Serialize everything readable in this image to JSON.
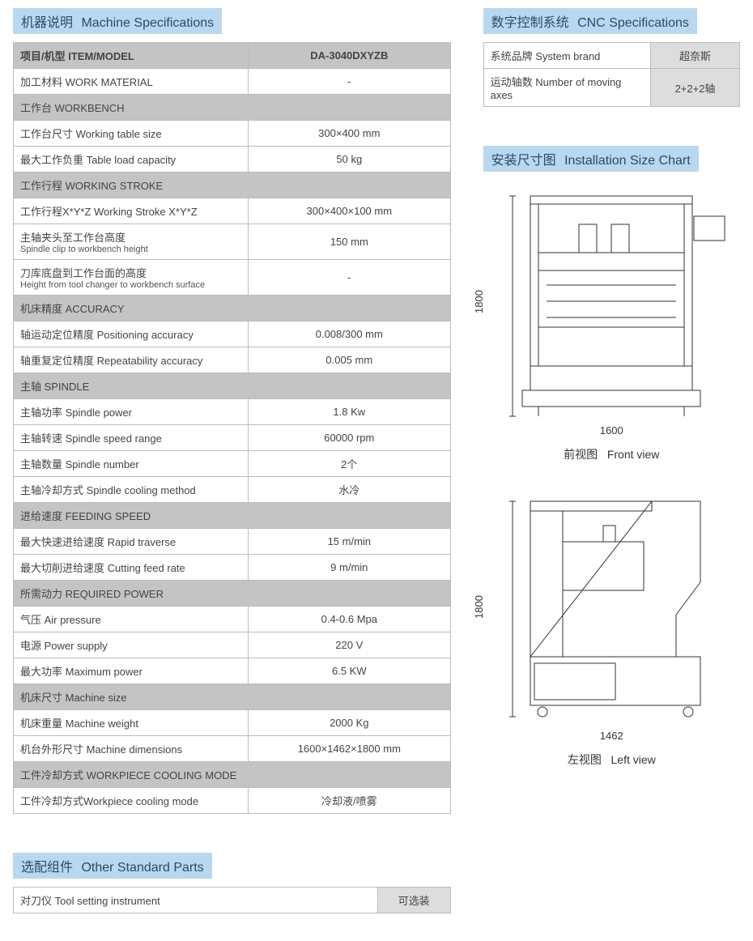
{
  "titles": {
    "machine_spec_cn": "机器说明",
    "machine_spec_en": "Machine Specifications",
    "cnc_cn": "数字控制系统",
    "cnc_en": "CNC Specifications",
    "install_cn": "安装尺寸图",
    "install_en": "Installation Size Chart",
    "parts_cn": "选配组件",
    "parts_en": "Other Standard Parts"
  },
  "header": {
    "item_label": "项目/机型 ITEM/MODEL",
    "model": "DA-3040DXYZB"
  },
  "spec_rows": [
    {
      "type": "row",
      "label": "加工材料 WORK MATERIAL",
      "value": "-"
    },
    {
      "type": "section",
      "label": "工作台 WORKBENCH"
    },
    {
      "type": "row",
      "label": "工作台尺寸 Working table size",
      "value": "300×400 mm"
    },
    {
      "type": "row",
      "label": "最大工作负重 Table load capacity",
      "value": "50 kg"
    },
    {
      "type": "section",
      "label": "工作行程 WORKING STROKE"
    },
    {
      "type": "row",
      "label": "工作行程X*Y*Z Working Stroke X*Y*Z",
      "value": "300×400×100 mm"
    },
    {
      "type": "row",
      "label": "主轴夹头至工作台高度",
      "sub": "Spindle clip to workbench height",
      "value": "150 mm"
    },
    {
      "type": "row",
      "label": "刀库底盘到工作台面的高度",
      "sub": "Height from tool changer to workbench surface",
      "value": "-"
    },
    {
      "type": "section",
      "label": "机床精度 ACCURACY"
    },
    {
      "type": "row",
      "label": "轴运动定位精度 Positioning accuracy",
      "value": "0.008/300 mm"
    },
    {
      "type": "row",
      "label": "轴重复定位精度 Repeatability accuracy",
      "value": "0.005 mm"
    },
    {
      "type": "section",
      "label": "主轴 SPINDLE"
    },
    {
      "type": "row",
      "label": "主轴功率 Spindle power",
      "value": "1.8 Kw"
    },
    {
      "type": "row",
      "label": "主轴转速 Spindle speed range",
      "value": "60000 rpm"
    },
    {
      "type": "row",
      "label": "主轴数量 Spindle number",
      "value": "2个"
    },
    {
      "type": "row",
      "label": "主轴冷却方式 Spindle cooling method",
      "value": "水冷"
    },
    {
      "type": "section",
      "label": "进给速度 FEEDING SPEED"
    },
    {
      "type": "row",
      "label": "最大快速进给速度 Rapid traverse",
      "value": "15 m/min"
    },
    {
      "type": "row",
      "label": "最大切削进给速度 Cutting feed rate",
      "value": "9 m/min"
    },
    {
      "type": "section",
      "label": "所需动力 REQUIRED POWER"
    },
    {
      "type": "row",
      "label": "气压 Air pressure",
      "value": "0.4-0.6 Mpa"
    },
    {
      "type": "row",
      "label": "电源 Power supply",
      "value": "220 V"
    },
    {
      "type": "row",
      "label": "最大功率 Maximum power",
      "value": "6.5 KW"
    },
    {
      "type": "section",
      "label": "机床尺寸 Machine size"
    },
    {
      "type": "row",
      "label": "机床重量 Machine weight",
      "value": "2000 Kg"
    },
    {
      "type": "row",
      "label": "机台外形尺寸 Machine dimensions",
      "value": "1600×1462×1800 mm"
    },
    {
      "type": "section",
      "label": "工件冷却方式 WORKPIECE COOLING MODE"
    },
    {
      "type": "row",
      "label": "工件冷却方式Workpiece cooling mode",
      "value": "冷却液/喷雾"
    }
  ],
  "cnc_rows": [
    {
      "label": "系统品牌 System brand",
      "value": "超奈斯"
    },
    {
      "label": "运动轴数 Number of moving axes",
      "value": "2+2+2轴"
    }
  ],
  "parts_rows": [
    {
      "label": "对刀仪 Tool setting instrument",
      "value": "可选装"
    }
  ],
  "diagrams": {
    "front": {
      "height_dim": "1800",
      "width_dim": "1600",
      "caption_cn": "前视图",
      "caption_en": "Front view"
    },
    "left": {
      "height_dim": "1800",
      "width_dim": "1462",
      "caption_cn": "左视图",
      "caption_en": "Left view"
    }
  },
  "colors": {
    "title_bg": "#b9d8ef",
    "title_fg": "#2b4a6b",
    "section_bg": "#c4c4c4",
    "border": "#bbbbbb",
    "text": "#444444",
    "stroke": "#333333"
  }
}
